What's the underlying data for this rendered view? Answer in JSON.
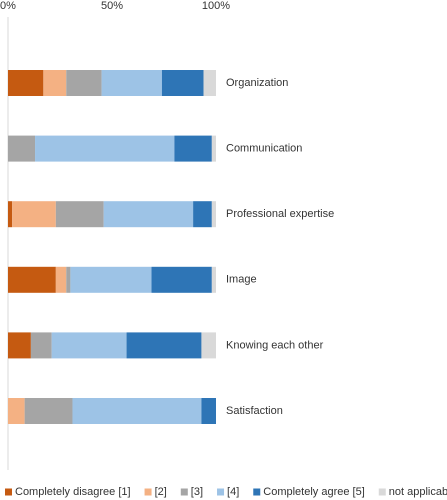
{
  "chart_data": {
    "type": "stacked-bar-horizontal",
    "categories": [
      "Organization",
      "Communication",
      "Professional expertise",
      "Image",
      "Knowing each other",
      "Satisfaction"
    ],
    "series": [
      {
        "name": "Completely disagree [1]",
        "color": "#c55a11",
        "values": [
          17,
          0,
          2,
          23,
          11,
          0
        ]
      },
      {
        "name": "[2]",
        "color": "#f4b183",
        "values": [
          11,
          0,
          21,
          5,
          0,
          8
        ]
      },
      {
        "name": "[3]",
        "color": "#a5a5a5",
        "values": [
          17,
          13,
          23,
          2,
          10,
          23
        ]
      },
      {
        "name": "[4]",
        "color": "#9dc3e6",
        "values": [
          29,
          67,
          43,
          39,
          36,
          62
        ]
      },
      {
        "name": "Completely agree [5]",
        "color": "#2e75b6",
        "values": [
          20,
          18,
          9,
          29,
          36,
          7
        ]
      },
      {
        "name": "not applicable",
        "color": "#d9d9d9",
        "values": [
          6,
          2,
          2,
          2,
          7,
          0
        ]
      }
    ],
    "xlim": [
      0,
      100
    ],
    "xticks": [
      {
        "value": 0,
        "label": "0%"
      },
      {
        "value": 50,
        "label": "50%"
      },
      {
        "value": 100,
        "label": "100%"
      }
    ],
    "legend": "bottom"
  }
}
